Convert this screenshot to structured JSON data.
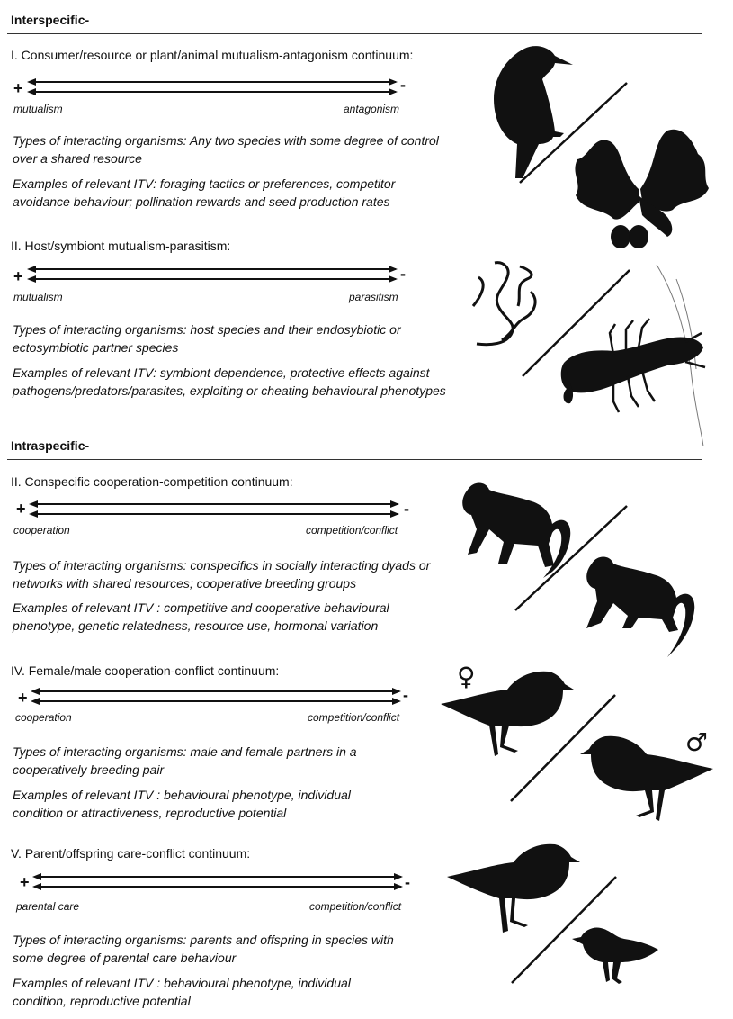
{
  "sections": [
    {
      "title": "Interspecific-"
    },
    {
      "title": "Intraspecific-"
    }
  ],
  "panels": [
    {
      "heading": "I. Consumer/resource or plant/animal mutualism-antagonism continuum:",
      "plus": "+",
      "minus": "-",
      "left_label": "mutualism",
      "right_label": "antagonism",
      "types": "Types of interacting organisms: Any two species with some degree of control over a shared resource",
      "examples": "Examples of relevant ITV: foraging tactics or preferences, competitor avoidance behaviour; pollination rewards and seed production rates",
      "icons": [
        "woodpecker-icon",
        "oak-leaves-icon"
      ]
    },
    {
      "heading": "II. Host/symbiont mutualism-parasitism:",
      "plus": "+",
      "minus": "-",
      "left_label": "mutualism",
      "right_label": "parasitism",
      "types": "Types of interacting organisms: host species and their endosybiotic or ectosymbiotic partner species",
      "examples": "Examples of relevant ITV: symbiont dependence, protective effects against pathogens/predators/parasites, exploiting or cheating behavioural phenotypes",
      "icons": [
        "worm-icon",
        "crayfish-icon"
      ]
    },
    {
      "heading": "II. Conspecific cooperation-competition continuum:",
      "plus": "+",
      "minus": "-",
      "left_label": "cooperation",
      "right_label": "competition/conflict",
      "types": "Types of interacting organisms: conspecifics in socially interacting dyads or networks with shared resources; cooperative breeding groups",
      "examples": "Examples of relevant ITV : competitive and cooperative behavioural phenotype, genetic relatedness, resource use, hormonal variation",
      "icons": [
        "monkey-icon",
        "monkey-icon"
      ]
    },
    {
      "heading": "IV. Female/male cooperation-conflict continuum:",
      "plus": "+",
      "minus": "-",
      "left_label": "cooperation",
      "right_label": "competition/conflict",
      "types": "Types of interacting organisms: male and female partners in a cooperatively breeding pair",
      "examples": "Examples of relevant ITV : behavioural phenotype, individual condition or attractiveness, reproductive potential",
      "female_symbol": "♀",
      "male_symbol": "♂",
      "icons": [
        "plover-icon",
        "plover-icon"
      ]
    },
    {
      "heading": "V. Parent/offspring care-conflict continuum:",
      "plus": "+",
      "minus": "-",
      "left_label": "parental care",
      "right_label": "competition/conflict",
      "types": "Types of interacting organisms: parents and offspring in species with some degree of parental care behaviour",
      "examples": "Examples of relevant ITV : behavioural phenotype, individual condition, reproductive potential",
      "icons": [
        "plover-adult-icon",
        "plover-chick-icon"
      ]
    }
  ],
  "colors": {
    "ink": "#111111",
    "rule": "#333333"
  }
}
